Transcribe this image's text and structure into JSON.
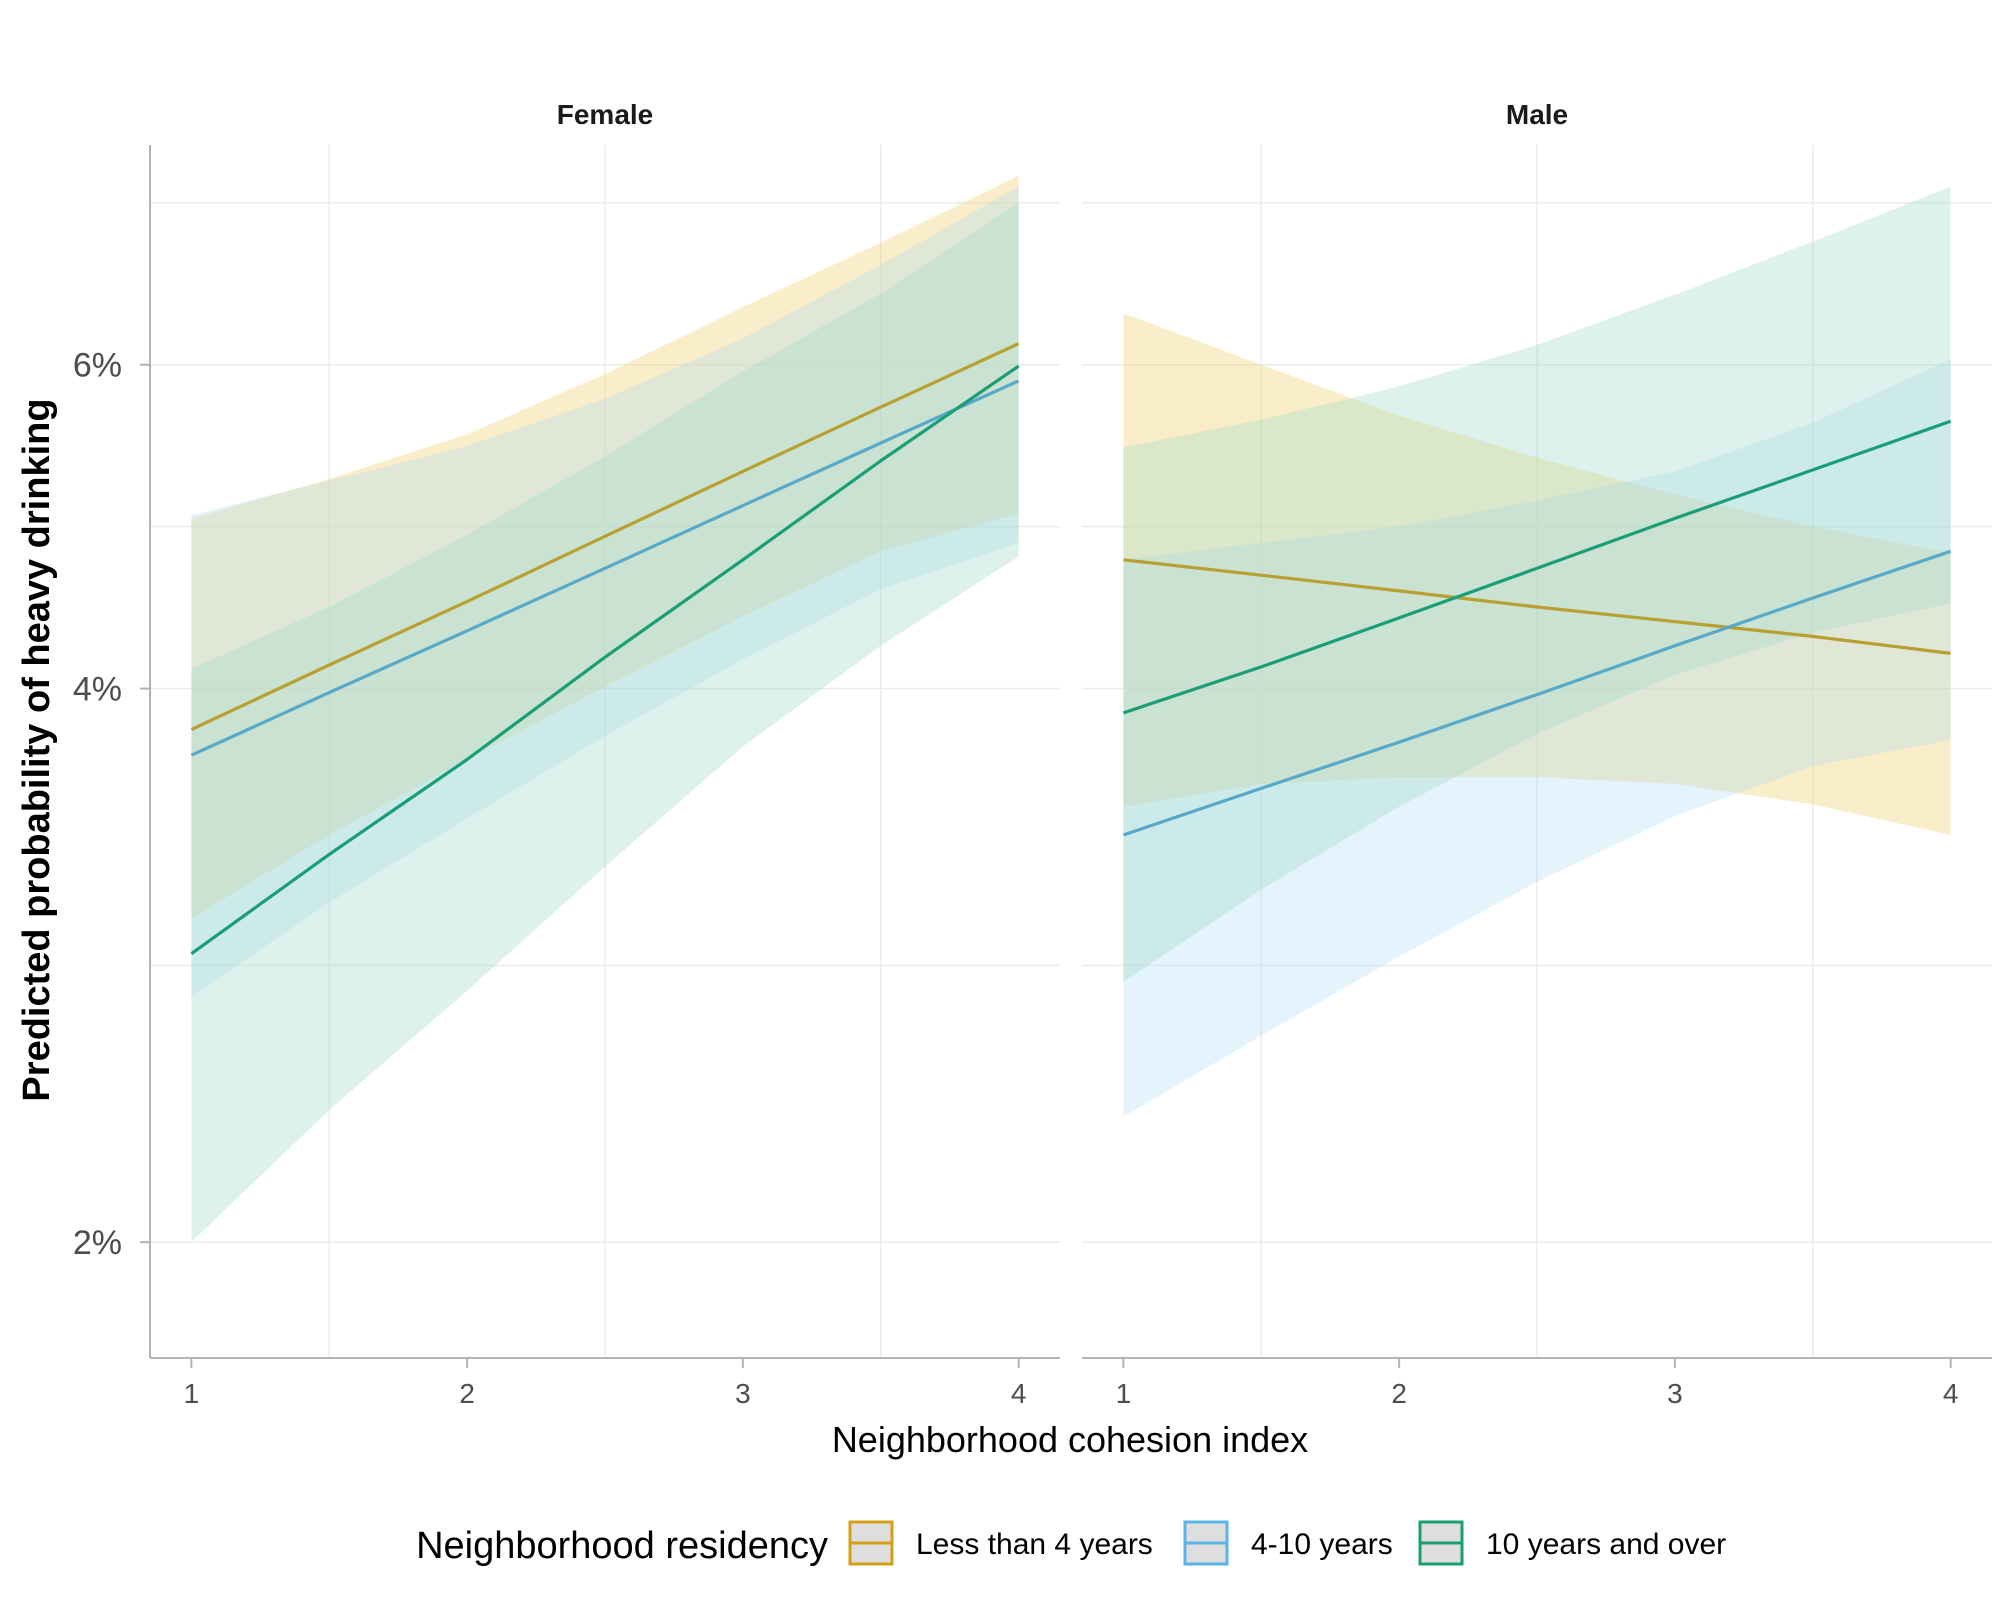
{
  "chart_data": {
    "type": "line",
    "x_axis": {
      "label": "Neighborhood cohesion index",
      "ticks": [
        1,
        2,
        3,
        4
      ],
      "range": [
        0.85,
        4.15
      ]
    },
    "y_axis": {
      "label": "Predicted probability of heavy drinking",
      "ticks": [
        2,
        4,
        6
      ],
      "tick_labels": [
        "2%",
        "4%",
        "6%"
      ],
      "range": [
        1.73,
        7.9
      ],
      "log_scale": true,
      "unit": "%"
    },
    "legend": {
      "title": "Neighborhood residency",
      "position": "bottom"
    },
    "grid": true,
    "series_meta": [
      {
        "name": "Less than 4 years",
        "color": "#D4A017",
        "line_color": "#B8A030",
        "fill_color": "#F5D98A"
      },
      {
        "name": "4-10 years",
        "color": "#5AB4E5",
        "line_color": "#58A8C8",
        "fill_color": "#A8D8F5"
      },
      {
        "name": "10 years and over",
        "color": "#1A9E77",
        "line_color": "#1A9E77",
        "fill_color": "#9ED9C8"
      }
    ],
    "panels": [
      {
        "title": "Female",
        "x": [
          1,
          1.5,
          2,
          2.5,
          3,
          3.5,
          4
        ],
        "series": [
          {
            "name": "Less than 4 years",
            "values": [
              3.8,
              4.12,
              4.46,
              4.84,
              5.25,
              5.69,
              6.16
            ],
            "lower": [
              3.0,
              3.33,
              3.66,
              4.01,
              4.38,
              4.75,
              4.98
            ],
            "upper": [
              4.95,
              5.2,
              5.5,
              5.93,
              6.45,
              6.99,
              7.6
            ]
          },
          {
            "name": "4-10 years",
            "values": [
              3.68,
              3.98,
              4.3,
              4.65,
              5.03,
              5.44,
              5.88
            ],
            "lower": [
              2.72,
              3.06,
              3.4,
              3.77,
              4.15,
              4.53,
              4.8
            ],
            "upper": [
              4.97,
              5.19,
              5.42,
              5.75,
              6.2,
              6.8,
              7.5
            ]
          },
          {
            "name": "10 years and over",
            "values": [
              2.87,
              3.25,
              3.66,
              4.16,
              4.7,
              5.32,
              5.99
            ],
            "lower": [
              2.0,
              2.36,
              2.74,
              3.2,
              3.72,
              4.22,
              4.72
            ],
            "upper": [
              4.1,
              4.43,
              4.85,
              5.35,
              5.95,
              6.56,
              7.35
            ]
          }
        ]
      },
      {
        "title": "Male",
        "x": [
          1,
          1.5,
          2,
          2.5,
          3,
          3.5,
          4
        ],
        "series": [
          {
            "name": "Less than 4 years",
            "values": [
              4.7,
              4.61,
              4.52,
              4.43,
              4.35,
              4.27,
              4.18
            ],
            "lower": [
              3.45,
              3.55,
              3.58,
              3.58,
              3.55,
              3.46,
              3.33
            ],
            "upper": [
              6.4,
              6.0,
              5.63,
              5.34,
              5.1,
              4.9,
              4.74
            ]
          },
          {
            "name": "4-10 years",
            "values": [
              3.33,
              3.53,
              3.74,
              3.97,
              4.22,
              4.48,
              4.75
            ],
            "lower": [
              2.34,
              2.59,
              2.86,
              3.14,
              3.41,
              3.63,
              3.75
            ],
            "upper": [
              4.7,
              4.8,
              4.9,
              5.06,
              5.25,
              5.58,
              6.04
            ]
          },
          {
            "name": "10 years and over",
            "values": [
              3.88,
              4.11,
              4.37,
              4.65,
              4.95,
              5.26,
              5.59
            ],
            "lower": [
              2.77,
              3.11,
              3.45,
              3.78,
              4.07,
              4.29,
              4.45
            ],
            "upper": [
              5.41,
              5.6,
              5.84,
              6.15,
              6.55,
              7.0,
              7.5
            ]
          }
        ]
      }
    ]
  }
}
